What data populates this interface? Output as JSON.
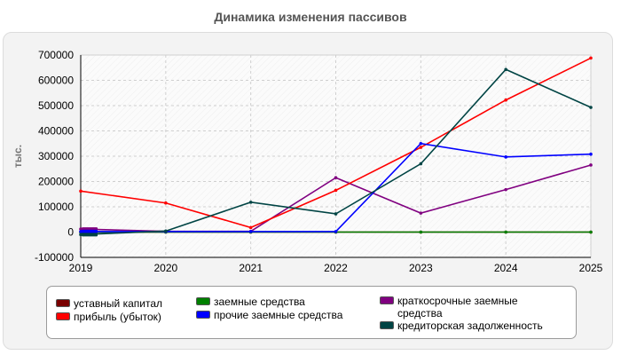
{
  "chart_data": {
    "type": "line",
    "title": "Динамика изменения пассивов",
    "ylabel": "тыс.",
    "xlabel": "",
    "x": [
      "2019",
      "2020",
      "2021",
      "2022",
      "2023",
      "2024",
      "2025"
    ],
    "ylim": [
      -100000,
      700000
    ],
    "yticks": [
      "-100000",
      "0",
      "100000",
      "200000",
      "300000",
      "400000",
      "500000",
      "600000",
      "700000"
    ],
    "grid": true,
    "legend_position": "bottom",
    "series": [
      {
        "name": "уставный капитал",
        "color": "#7a0000",
        "values": [
          10,
          10,
          10,
          10,
          10,
          10,
          10
        ]
      },
      {
        "name": "заемные средства",
        "color": "#008000",
        "values": [
          0,
          0,
          0,
          0,
          0,
          0,
          0
        ]
      },
      {
        "name": "краткосрочные заемные средства",
        "color": "#800080",
        "values": [
          12000,
          3000,
          3000,
          215000,
          75000,
          168000,
          265000
        ]
      },
      {
        "name": "прибыль (убыток)",
        "color": "#ff0000",
        "values": [
          162000,
          115000,
          18000,
          165000,
          335000,
          522000,
          688000
        ]
      },
      {
        "name": "прочие заемные средства",
        "color": "#0000ff",
        "values": [
          2000,
          2000,
          2000,
          2000,
          350000,
          297000,
          308000
        ]
      },
      {
        "name": "кредиторская задолженность",
        "color": "#004444",
        "values": [
          -10000,
          4000,
          118000,
          72000,
          270000,
          643000,
          493000
        ]
      }
    ]
  }
}
